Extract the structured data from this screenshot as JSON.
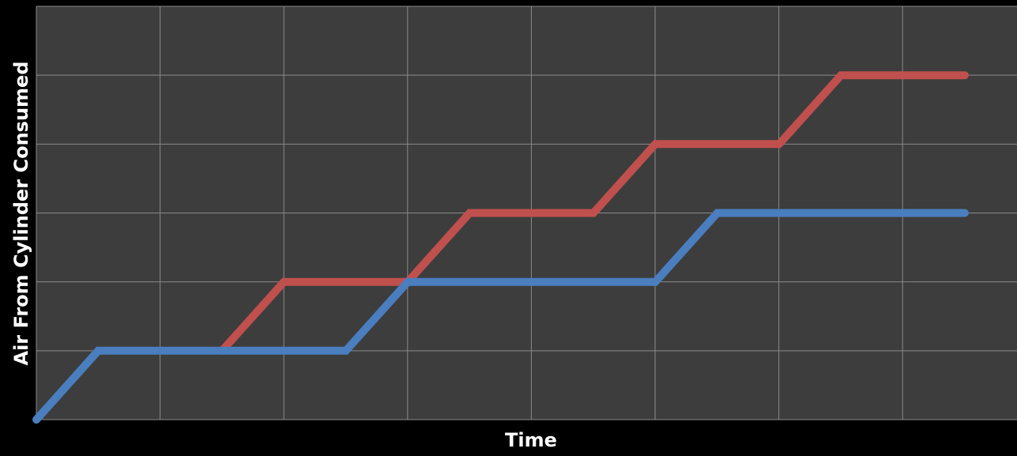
{
  "chart_data": {
    "type": "line",
    "xlabel": "Time",
    "ylabel": "Air From Cylinder Consumed",
    "xlim": [
      0,
      15
    ],
    "ylim": [
      0,
      6
    ],
    "grid": true,
    "legend": "none",
    "x_gridlines": 8,
    "y_gridlines": 6,
    "colors": {
      "background": "#000000",
      "plot_area": "#3d3d3d",
      "gridline": "#8a8a8a",
      "text": "#ffffff"
    },
    "series": [
      {
        "color": "#c0504d",
        "x": [
          3,
          4,
          6,
          7,
          9,
          10,
          12,
          13,
          15
        ],
        "y": [
          1,
          2,
          2,
          3,
          3,
          4,
          4,
          5,
          5
        ]
      },
      {
        "color": "#4a7ebf",
        "x": [
          0,
          1,
          5,
          6,
          10,
          11,
          15
        ],
        "y": [
          0,
          1,
          1,
          2,
          2,
          3,
          3
        ]
      }
    ]
  }
}
